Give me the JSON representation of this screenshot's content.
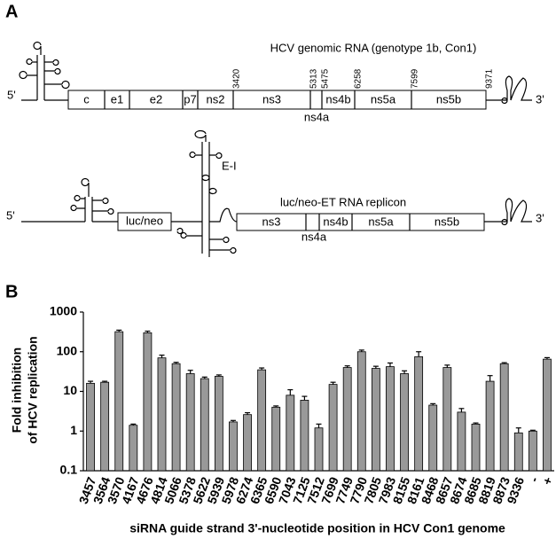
{
  "panel_a": {
    "label": "A",
    "genome": {
      "title": "HCV genomic RNA (genotype 1b, Con1)",
      "five": "5'",
      "three": "3'",
      "genes": [
        "c",
        "e1",
        "e2",
        "p7",
        "ns2",
        "ns3",
        "ns4b",
        "ns5a",
        "ns5b"
      ],
      "ns4a": "ns4a",
      "positions": [
        3420,
        5313,
        5475,
        6258,
        7599,
        9371
      ]
    },
    "replicon": {
      "title": "luc/neo-ET RNA replicon",
      "five": "5'",
      "three": "3'",
      "ires": "E-I",
      "marker": "luc/neo",
      "genes": [
        "ns3",
        "ns4b",
        "ns5a",
        "ns5b"
      ],
      "ns4a": "ns4a"
    }
  },
  "chart_data": {
    "type": "bar",
    "panel_label": "B",
    "ylabel": [
      "Fold inhibition",
      "of HCV replication"
    ],
    "xlabel": "siRNA guide strand 3'-nucleotide position in HCV Con1 genome",
    "categories": [
      "3457",
      "3564",
      "3570",
      "4167",
      "4676",
      "4814",
      "5066",
      "5378",
      "5622",
      "5939",
      "5978",
      "6274",
      "6365",
      "6590",
      "7043",
      "7125",
      "7512",
      "7699",
      "7749",
      "7790",
      "7805",
      "7983",
      "8155",
      "8161",
      "8468",
      "8657",
      "8674",
      "8685",
      "8819",
      "8873",
      "9336",
      "-",
      "+"
    ],
    "values": [
      16,
      17,
      320,
      1.4,
      300,
      70,
      50,
      28,
      21,
      24,
      1.7,
      2.6,
      35,
      4,
      8,
      6,
      1.2,
      15,
      40,
      100,
      38,
      42,
      28,
      75,
      4.5,
      40,
      3,
      1.5,
      18,
      50,
      0.9,
      1.0,
      65
    ],
    "errors": [
      2,
      1,
      30,
      0.1,
      30,
      12,
      4,
      6,
      2,
      2,
      0.15,
      0.3,
      4,
      0.3,
      3,
      1.5,
      0.3,
      2,
      4,
      10,
      5,
      10,
      5,
      25,
      0.4,
      6,
      0.7,
      0.1,
      7,
      3,
      0.3,
      0.05,
      6
    ],
    "color": "#999999",
    "log_scale": true,
    "ylim": [
      0.1,
      1000
    ],
    "yticks": [
      0.1,
      1,
      10,
      100,
      1000
    ]
  }
}
